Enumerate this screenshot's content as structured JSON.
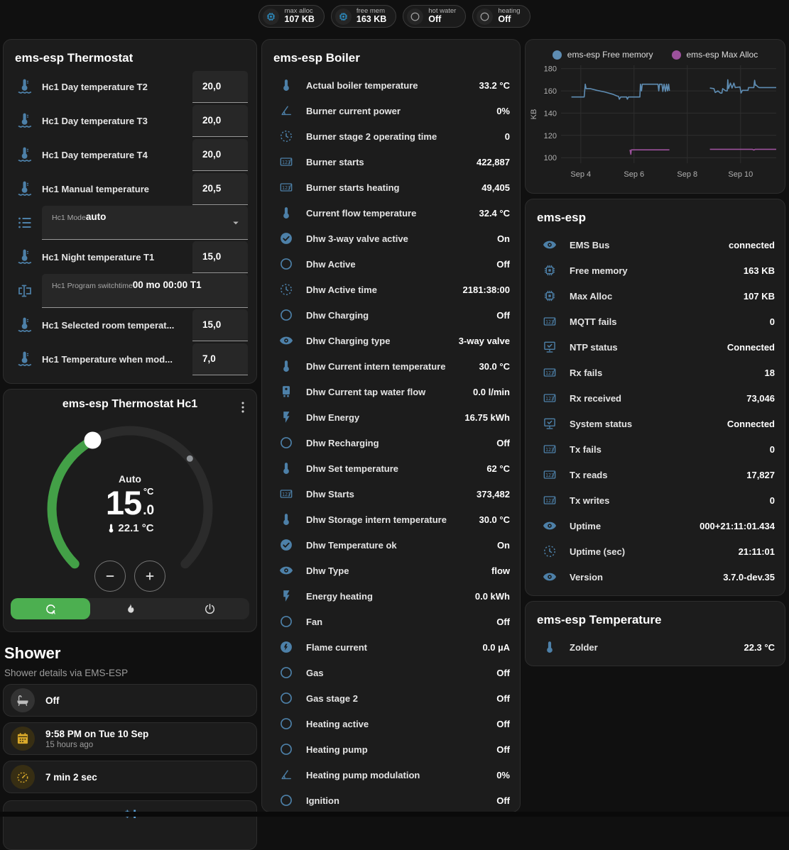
{
  "header": {
    "badges": [
      {
        "icon": "chip",
        "color": "blue",
        "label": "max alloc",
        "value": "107 KB"
      },
      {
        "icon": "chip",
        "color": "blue",
        "label": "free mem",
        "value": "163 KB"
      },
      {
        "icon": "circle",
        "color": "gray",
        "label": "hot water",
        "value": "Off"
      },
      {
        "icon": "circle",
        "color": "gray",
        "label": "heating",
        "value": "Off"
      }
    ]
  },
  "thermostat_panel": {
    "title": "ems-esp Thermostat",
    "rows": [
      {
        "type": "number",
        "icon": "thermometer-water",
        "label": "Hc1 Day temperature T2",
        "value": "20,0"
      },
      {
        "type": "number",
        "icon": "thermometer-water",
        "label": "Hc1 Day temperature T3",
        "value": "20,0"
      },
      {
        "type": "number",
        "icon": "thermometer-water",
        "label": "Hc1 Day temperature T4",
        "value": "20,0"
      },
      {
        "type": "number",
        "icon": "thermometer-water",
        "label": "Hc1 Manual temperature",
        "value": "20,5"
      },
      {
        "type": "select",
        "icon": "list",
        "label": "Hc1 Mode",
        "value": "auto"
      },
      {
        "type": "number",
        "icon": "thermometer-water",
        "label": "Hc1 Night temperature T1",
        "value": "15,0"
      },
      {
        "type": "textfield",
        "icon": "textbox",
        "label": "Hc1 Program switchtime",
        "value": "00 mo 00:00 T1"
      },
      {
        "type": "number",
        "icon": "thermometer-water",
        "label": "Hc1 Selected room temperat...",
        "value": "15,0"
      },
      {
        "type": "number",
        "icon": "thermometer-water",
        "label": "Hc1 Temperature when mod...",
        "value": "7,0"
      }
    ]
  },
  "dial_card": {
    "title": "ems-esp Thermostat Hc1",
    "mode_label": "Auto",
    "target_int": "15",
    "target_unit": "°C",
    "target_dec": ".0",
    "current_temp": "22.1 °C",
    "accent_green": "#43a047"
  },
  "shower": {
    "title": "Shower",
    "subtitle": "Shower details via EMS-ESP",
    "cards": [
      {
        "icon": "bathtub",
        "color": "gray",
        "text": "Off"
      },
      {
        "icon": "calendar",
        "color": "amber",
        "text": "9:58 PM on Tue 10 Sep",
        "subtext": "15 hours ago"
      },
      {
        "icon": "timer",
        "color": "amber",
        "text": "7 min 2 sec"
      },
      {
        "icon": "snowflake-alert",
        "color": "blue",
        "text": ""
      }
    ]
  },
  "boiler_panel": {
    "title": "ems-esp Boiler",
    "rows": [
      {
        "icon": "thermometer",
        "label": "Actual boiler temperature",
        "value": "33.2 °C"
      },
      {
        "icon": "angle",
        "label": "Burner current power",
        "value": "0%"
      },
      {
        "icon": "clock",
        "label": "Burner stage 2 operating time",
        "value": "0"
      },
      {
        "icon": "counter",
        "label": "Burner starts",
        "value": "422,887"
      },
      {
        "icon": "counter",
        "label": "Burner starts heating",
        "value": "49,405"
      },
      {
        "icon": "thermometer",
        "label": "Current flow temperature",
        "value": "32.4 °C"
      },
      {
        "icon": "check-circle",
        "label": "Dhw 3-way valve active",
        "value": "On"
      },
      {
        "icon": "circle",
        "label": "Dhw Active",
        "value": "Off"
      },
      {
        "icon": "clock",
        "label": "Dhw Active time",
        "value": "2181:38:00"
      },
      {
        "icon": "circle",
        "label": "Dhw Charging",
        "value": "Off"
      },
      {
        "icon": "eye",
        "label": "Dhw Charging type",
        "value": "3-way valve"
      },
      {
        "icon": "thermometer",
        "label": "Dhw Current intern temperature",
        "value": "30.0 °C"
      },
      {
        "icon": "water-boiler",
        "label": "Dhw Current tap water flow",
        "value": "0.0 l/min"
      },
      {
        "icon": "flash",
        "label": "Dhw Energy",
        "value": "16.75 kWh"
      },
      {
        "icon": "circle",
        "label": "Dhw Recharging",
        "value": "Off"
      },
      {
        "icon": "thermometer",
        "label": "Dhw Set temperature",
        "value": "62 °C"
      },
      {
        "icon": "counter",
        "label": "Dhw Starts",
        "value": "373,482"
      },
      {
        "icon": "thermometer",
        "label": "Dhw Storage intern temperature",
        "value": "30.0 °C"
      },
      {
        "icon": "check-circle",
        "label": "Dhw Temperature ok",
        "value": "On"
      },
      {
        "icon": "eye",
        "label": "Dhw Type",
        "value": "flow"
      },
      {
        "icon": "flash",
        "label": "Energy heating",
        "value": "0.0 kWh"
      },
      {
        "icon": "circle",
        "label": "Fan",
        "value": "Off"
      },
      {
        "icon": "flash-circle",
        "label": "Flame current",
        "value": "0.0 µA"
      },
      {
        "icon": "circle",
        "label": "Gas",
        "value": "Off"
      },
      {
        "icon": "circle",
        "label": "Gas stage 2",
        "value": "Off"
      },
      {
        "icon": "circle",
        "label": "Heating active",
        "value": "Off"
      },
      {
        "icon": "circle",
        "label": "Heating pump",
        "value": "Off"
      },
      {
        "icon": "angle",
        "label": "Heating pump modulation",
        "value": "0%"
      },
      {
        "icon": "circle",
        "label": "Ignition",
        "value": "Off"
      }
    ]
  },
  "chart_data": {
    "type": "line",
    "ylabel": "KB",
    "yticks": [
      100,
      120,
      140,
      160,
      180
    ],
    "ylim": [
      95,
      183
    ],
    "xticks": [
      {
        "x": 4,
        "label": "Sep 4"
      },
      {
        "x": 6,
        "label": "Sep 6"
      },
      {
        "x": 8,
        "label": "Sep 8"
      },
      {
        "x": 10,
        "label": "Sep 10"
      }
    ],
    "xlim": [
      3.26,
      11.34
    ],
    "grid": true,
    "legend_position": "top",
    "series": [
      {
        "name": "ems-esp Free memory",
        "color": "#5e8cb2",
        "points": [
          [
            3.65,
            154.5
          ],
          [
            4.13,
            154.5
          ],
          [
            4.17,
            166
          ],
          [
            4.2,
            162
          ],
          [
            4.35,
            162
          ],
          [
            4.6,
            160.5
          ],
          [
            4.9,
            159
          ],
          [
            5.2,
            157
          ],
          [
            5.35,
            155.5
          ],
          [
            5.42,
            155
          ],
          [
            5.45,
            152.5
          ],
          [
            5.5,
            154.5
          ],
          [
            5.72,
            154.5
          ],
          [
            5.75,
            152.5
          ],
          [
            5.79,
            154.5
          ],
          [
            6.22,
            154.5
          ],
          [
            6.24,
            166
          ],
          [
            6.28,
            160
          ],
          [
            6.31,
            166
          ],
          [
            6.9,
            166
          ],
          [
            6.93,
            160
          ],
          [
            6.96,
            166
          ],
          [
            7.05,
            166
          ],
          [
            7.08,
            159.5
          ],
          [
            7.13,
            166
          ],
          [
            7.18,
            159.5
          ],
          [
            7.22,
            166
          ],
          [
            7.26,
            160
          ],
          [
            7.3,
            166
          ],
          [
            7.33,
            160
          ],
          null,
          [
            8.85,
            162.5
          ],
          [
            9.0,
            162
          ],
          [
            9.05,
            158.5
          ],
          [
            9.15,
            160
          ],
          [
            9.25,
            158
          ],
          [
            9.3,
            158
          ],
          [
            9.33,
            162
          ],
          [
            9.45,
            160
          ],
          [
            9.5,
            160
          ],
          [
            9.52,
            170
          ],
          [
            9.55,
            162
          ],
          [
            9.62,
            167
          ],
          [
            9.68,
            162.5
          ],
          [
            9.75,
            167
          ],
          [
            9.8,
            163
          ],
          [
            9.98,
            163.5
          ],
          [
            10.02,
            158
          ],
          [
            10.07,
            160.5
          ],
          [
            10.28,
            160.5
          ],
          [
            10.3,
            163
          ],
          [
            10.5,
            163
          ],
          [
            10.53,
            169.5
          ],
          [
            10.56,
            165
          ],
          [
            10.6,
            165
          ],
          [
            10.63,
            164
          ],
          [
            10.7,
            163
          ],
          [
            11.34,
            163
          ]
        ]
      },
      {
        "name": "ems-esp Max Alloc",
        "color": "#9c519c",
        "points": [
          [
            5.85,
            107
          ],
          [
            5.88,
            103
          ],
          [
            5.9,
            107
          ],
          [
            7.33,
            107
          ],
          null,
          [
            8.85,
            107.5
          ],
          [
            10.45,
            107.5
          ],
          [
            10.5,
            106.8
          ],
          [
            10.55,
            107.5
          ],
          [
            11.34,
            107.5
          ]
        ]
      }
    ]
  },
  "emsesp_panel": {
    "title": "ems-esp",
    "rows": [
      {
        "icon": "eye",
        "label": "EMS Bus",
        "value": "connected"
      },
      {
        "icon": "chip",
        "label": "Free memory",
        "value": "163 KB"
      },
      {
        "icon": "chip",
        "label": "Max Alloc",
        "value": "107 KB"
      },
      {
        "icon": "counter",
        "label": "MQTT fails",
        "value": "0"
      },
      {
        "icon": "monitor-check",
        "label": "NTP status",
        "value": "Connected"
      },
      {
        "icon": "counter",
        "label": "Rx fails",
        "value": "18"
      },
      {
        "icon": "counter",
        "label": "Rx received",
        "value": "73,046"
      },
      {
        "icon": "monitor-check",
        "label": "System status",
        "value": "Connected"
      },
      {
        "icon": "counter",
        "label": "Tx fails",
        "value": "0"
      },
      {
        "icon": "counter",
        "label": "Tx reads",
        "value": "17,827"
      },
      {
        "icon": "counter",
        "label": "Tx writes",
        "value": "0"
      },
      {
        "icon": "eye",
        "label": "Uptime",
        "value": "000+21:11:01.434"
      },
      {
        "icon": "clock",
        "label": "Uptime (sec)",
        "value": "21:11:01"
      },
      {
        "icon": "eye",
        "label": "Version",
        "value": "3.7.0-dev.35"
      }
    ]
  },
  "temperature_panel": {
    "title": "ems-esp Temperature",
    "rows": [
      {
        "icon": "thermometer",
        "label": "Zolder",
        "value": "22.3 °C"
      }
    ]
  },
  "colors": {
    "icon_blue": "#4d80a8",
    "badge_blue": "#2e9bd6",
    "amber": "#d9a92a",
    "green": "#43a047",
    "chart_blue": "#5e8cb2",
    "chart_purple": "#9c519c"
  }
}
